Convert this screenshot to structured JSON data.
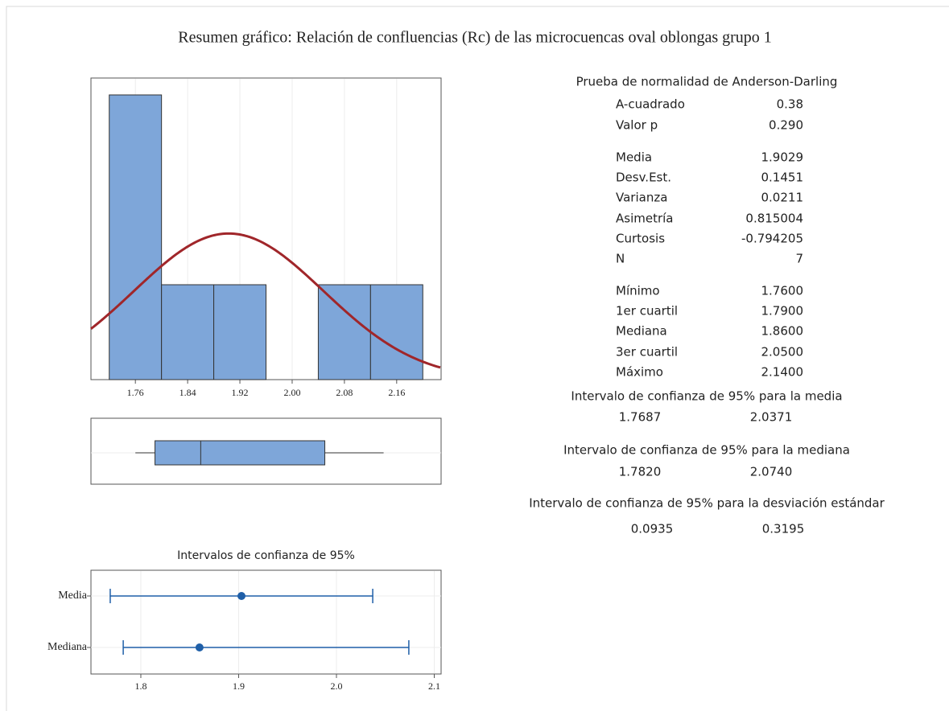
{
  "title": "Resumen gráfico: Relación de confluencias (Rc) de las microcuencas oval oblongas grupo 1",
  "stats": {
    "title": "Prueba de normalidad de Anderson-Darling",
    "groups": [
      [
        {
          "name": "A-cuadrado",
          "value": 0.38
        },
        {
          "name": "Valor p",
          "value": {
            "value": 0.29,
            "label": "0.290"
          }
        }
      ],
      [
        {
          "name": "Media",
          "value": 1.9029
        },
        {
          "name": "Desv.Est.",
          "value": 0.1451
        },
        {
          "name": "Varianza",
          "value": 0.0211
        },
        {
          "name": "Asimetría",
          "value": 0.815004
        },
        {
          "name": "Curtosis",
          "value": -0.794205
        },
        {
          "name": "N",
          "value": 7
        }
      ],
      [
        {
          "name": "Mínimo",
          "value": {
            "value": 1.76,
            "label": "1.7600"
          }
        },
        {
          "name": "1er cuartil",
          "value": {
            "value": 1.79,
            "label": "1.7900"
          }
        },
        {
          "name": "Mediana",
          "value": {
            "value": 1.86,
            "label": "1.8600"
          }
        },
        {
          "name": "3er cuartil",
          "value": {
            "value": 2.05,
            "label": "2.0500"
          }
        },
        {
          "name": "Máximo",
          "value": {
            "value": 2.14,
            "label": "2.1400"
          }
        }
      ]
    ],
    "ci": [
      {
        "title": "Intervalo de confianza de 95% para la media",
        "lower": 1.7687,
        "upper": 2.0371
      },
      {
        "title": "Intervalo de confianza de 95% para la mediana",
        "lower": {
          "value": 1.782,
          "label": "1.7820"
        },
        "upper": {
          "value": 2.074,
          "label": "2.0740"
        }
      },
      {
        "title": "Intervalo de confianza de 95% para la desviación estándar",
        "lower": 0.0935,
        "upper": 0.3195
      }
    ]
  },
  "chart_data": [
    {
      "type": "histogram",
      "bins": [
        1.72,
        1.8,
        1.88,
        1.96,
        2.04,
        2.12,
        2.2
      ],
      "counts": [
        3,
        1,
        1,
        0,
        1,
        1
      ],
      "color": "#7ea6d9",
      "fit_color": "#a0262a",
      "xlim": [
        1.692,
        2.228
      ],
      "xticks": [
        1.76,
        1.84,
        1.92,
        {
          "value": 2,
          "label": "2.00"
        },
        2.08,
        2.16
      ],
      "grid": true
    },
    {
      "type": "boxplot",
      "color": "#7ea6d9",
      "xlim": [
        1.692,
        2.228
      ],
      "grid": true
    },
    {
      "type": "interval",
      "title": "Intervalos de confianza de 95%",
      "categories": [
        "Media",
        "Mediana"
      ],
      "color": "#1f5fa8",
      "xlim": [
        1.749,
        2.107
      ],
      "xticks": [
        1.8,
        1.9,
        {
          "value": 2,
          "label": "2.0"
        },
        2.1
      ],
      "grid": true
    }
  ]
}
